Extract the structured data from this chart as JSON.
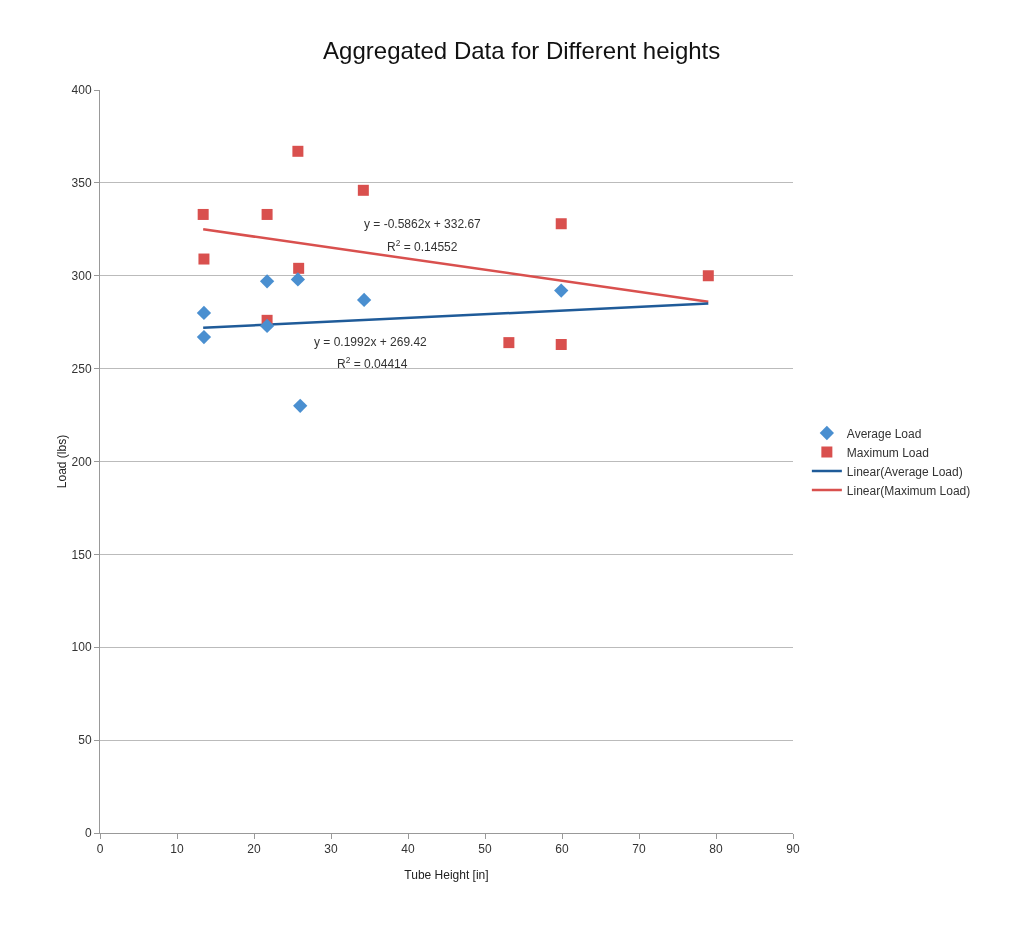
{
  "chart_data": {
    "type": "scatter",
    "title": "Aggregated Data for Different heights",
    "xlabel": "Tube Height [in]",
    "ylabel": "Load (lbs)",
    "xlim": [
      0,
      90
    ],
    "xticks": [
      0,
      10,
      20,
      30,
      40,
      50,
      60,
      70,
      80,
      90
    ],
    "ylim": [
      0,
      400
    ],
    "yticks": [
      0,
      50,
      100,
      150,
      200,
      250,
      300,
      350,
      400
    ],
    "grid": "y",
    "legend": "right",
    "series": [
      {
        "name": "Average Load",
        "color": "#4a8fd0",
        "marker": "diamond",
        "x": [
          13.5,
          13.5,
          21.7,
          21.7,
          25.7,
          26,
          34.3,
          59.9
        ],
        "values": [
          280,
          267,
          297,
          273,
          298,
          230,
          287,
          292
        ]
      },
      {
        "name": "Maximum Load",
        "color": "#d9504e",
        "marker": "square",
        "x": [
          13.4,
          13.5,
          21.7,
          21.7,
          25.7,
          25.8,
          34.2,
          53.1,
          59.9,
          59.9,
          79
        ],
        "values": [
          333,
          309,
          333,
          276,
          367,
          304,
          346,
          264,
          328,
          263,
          300
        ]
      },
      {
        "name": "Linear(Average Load)",
        "type": "line",
        "marker": "none",
        "color": "#1f5b99",
        "x": [
          13.4,
          79
        ],
        "values": [
          272,
          285
        ]
      },
      {
        "name": "Linear(Maximum Load)",
        "type": "line",
        "marker": "none",
        "color": "#d9504e",
        "x": [
          13.4,
          79
        ],
        "values": [
          325,
          286
        ]
      }
    ],
    "annotations": [
      "y = -0.5862x + 332.67",
      "R$^{2}$ = 0.14552",
      "y = 0.1992x + 269.42",
      "R$^{2}$ = 0.04414"
    ]
  }
}
